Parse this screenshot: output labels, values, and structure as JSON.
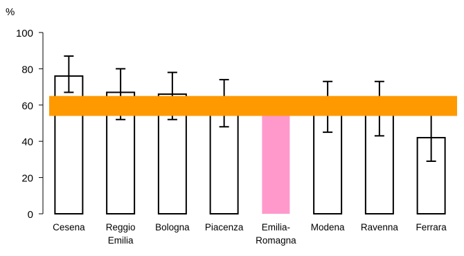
{
  "chart_data": {
    "type": "bar",
    "unit_label": "%",
    "categories": [
      [
        "Cesena"
      ],
      [
        "Reggio",
        "Emilia"
      ],
      [
        "Bologna"
      ],
      [
        "Piacenza"
      ],
      [
        "Emilia-",
        "Romagna"
      ],
      [
        "Modena"
      ],
      [
        "Ravenna"
      ],
      [
        "Ferrara"
      ]
    ],
    "values": [
      76,
      67,
      66,
      60,
      60,
      59,
      58,
      42
    ],
    "error_low": [
      67,
      52,
      52,
      48,
      60,
      45,
      43,
      29
    ],
    "error_high": [
      87,
      80,
      78,
      74,
      60,
      73,
      73,
      56
    ],
    "highlight_index": 4,
    "ylim": [
      0,
      100
    ],
    "yticks": [
      "0",
      "20",
      "40",
      "60",
      "80",
      "100"
    ],
    "reference_band": [
      54,
      65
    ],
    "colors": {
      "bar": "#ffffff",
      "bar_stroke": "#000000",
      "highlight": "#ff99cc",
      "band": "#ff9900",
      "axis": "#000000"
    }
  }
}
